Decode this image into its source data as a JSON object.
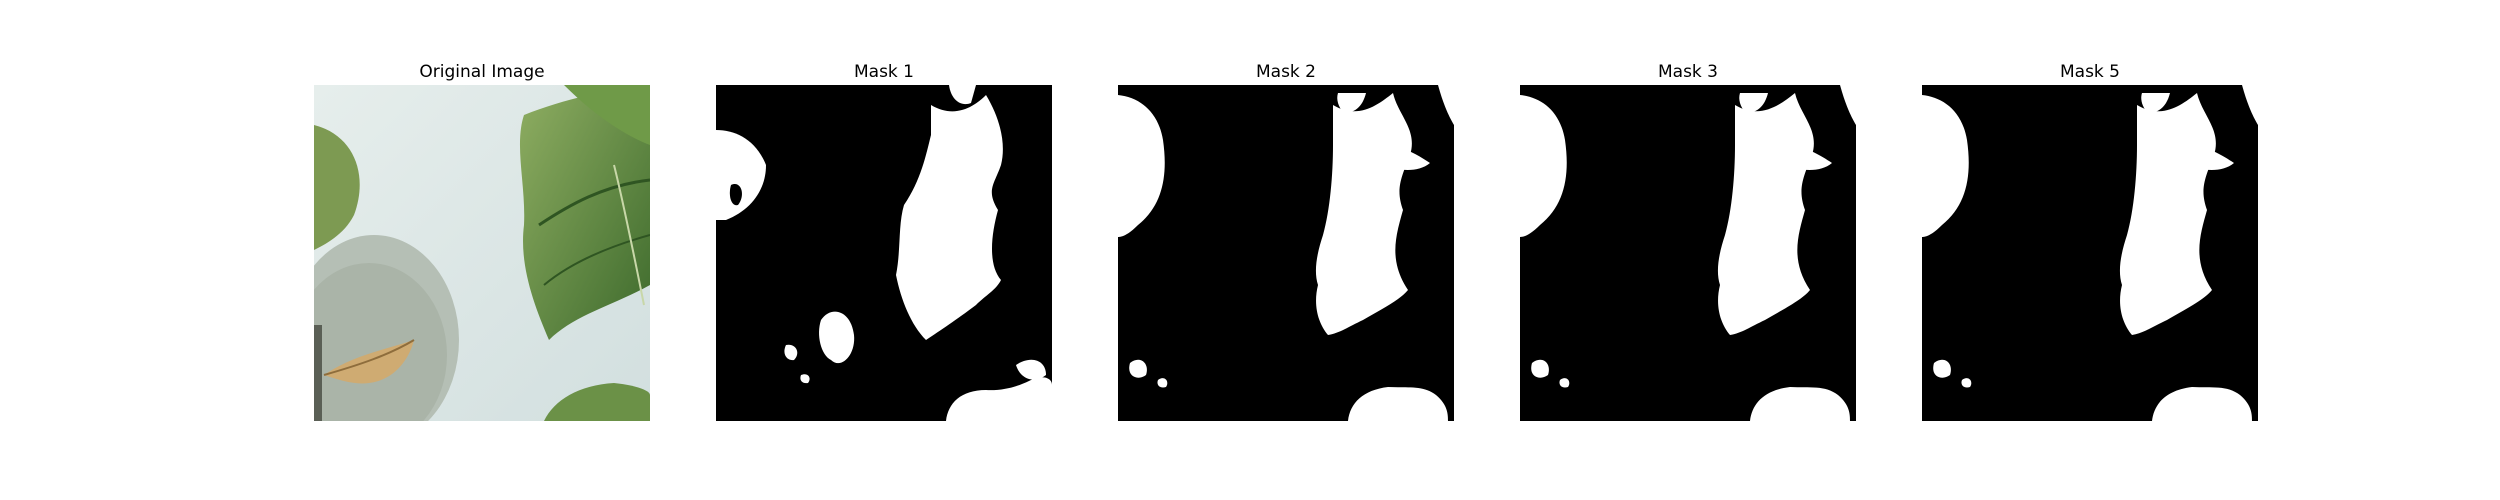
{
  "figure": {
    "panels": [
      {
        "title": "Original Image"
      },
      {
        "title": "Mask 1"
      },
      {
        "title": "Mask 2"
      },
      {
        "title": "Mask 3"
      },
      {
        "title": "Mask 5"
      }
    ]
  },
  "colors": {
    "background": "#ffffff",
    "mask_background": "#000000",
    "mask_foreground": "#ffffff",
    "photo_surface": "#d7e3e2",
    "leaf_green": "#6e8f4a",
    "leaf_dark": "#3f6a2e",
    "dry_leaf": "#c9a56a"
  }
}
